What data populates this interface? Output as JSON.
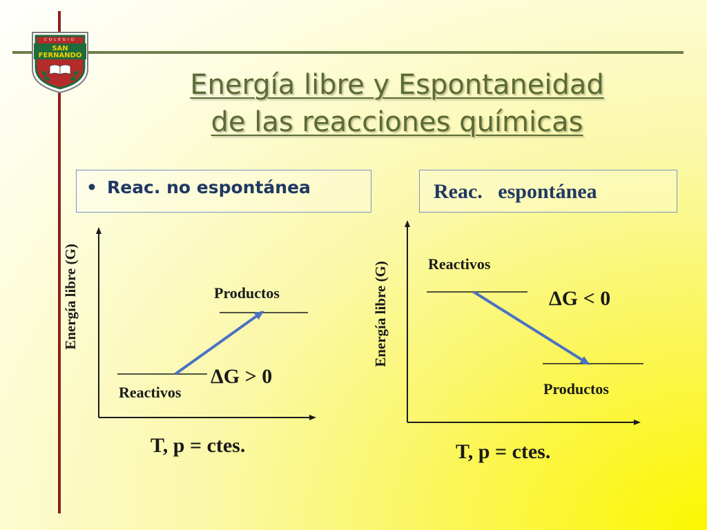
{
  "logo": {
    "arc_text": "COLEGIO",
    "name_line1": "SAN",
    "name_line2": "FERNANDO"
  },
  "title": {
    "line1": "Energía libre y Espontaneidad",
    "line2": "de las reacciones químicas"
  },
  "left_panel": {
    "heading": "Reac.  no espontánea",
    "y_axis_label": "Energía libre (G)",
    "products_label": "Productos",
    "reactants_label": "Reactivos",
    "delta_g": "ΔG > 0",
    "conditions": "T, p = ctes."
  },
  "right_panel": {
    "heading": "Reac.   espontánea",
    "y_axis_label": "Energía libre  (G)",
    "reactants_label": "Reactivos",
    "products_label": "Productos",
    "delta_g": "ΔG < 0",
    "conditions": "T, p = ctes."
  },
  "colors": {
    "title": "#5b6b34",
    "heading": "#1f3864",
    "arrow": "#4a72c4",
    "frame_vertical": "#8e1e1e",
    "frame_horizontal": "#6d7d4b"
  }
}
